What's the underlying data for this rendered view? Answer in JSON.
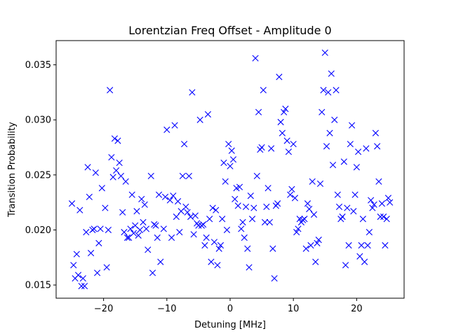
{
  "chart_data": {
    "type": "scatter",
    "title": "Lorentzian Freq Offset - Amplitude 0",
    "xlabel": "Detuning [MHz]",
    "ylabel": "Transition Probability",
    "xlim": [
      -27.5,
      27.5
    ],
    "ylim": [
      0.0138,
      0.0372
    ],
    "xticks": [
      -20,
      -10,
      0,
      10,
      20
    ],
    "yticks": [
      0.015,
      0.02,
      0.025,
      0.03,
      0.035
    ],
    "ytick_labels": [
      "0.015",
      "0.020",
      "0.025",
      "0.030",
      "0.035"
    ],
    "grid": false,
    "marker": "x",
    "color": "#0000ff",
    "points": [
      [
        -25,
        0.0224
      ],
      [
        -24.75,
        0.0168
      ],
      [
        -24.5,
        0.0156
      ],
      [
        -24.25,
        0.0178
      ],
      [
        -24,
        0.0159
      ],
      [
        -23.75,
        0.0218
      ],
      [
        -23.5,
        0.0149
      ],
      [
        -23.25,
        0.0156
      ],
      [
        -23,
        0.0149
      ],
      [
        -22.75,
        0.0198
      ],
      [
        -22.5,
        0.0257
      ],
      [
        -22.25,
        0.023
      ],
      [
        -22,
        0.0179
      ],
      [
        -21.75,
        0.02
      ],
      [
        -21.5,
        0.0201
      ],
      [
        -21.25,
        0.0252
      ],
      [
        -21,
        0.0161
      ],
      [
        -20.75,
        0.0188
      ],
      [
        -20.5,
        0.0201
      ],
      [
        -20.25,
        0.0238
      ],
      [
        -19.75,
        0.022
      ],
      [
        -19.5,
        0.0166
      ],
      [
        -19.25,
        0.02
      ],
      [
        -19,
        0.0327
      ],
      [
        -18.75,
        0.0266
      ],
      [
        -18.5,
        0.0248
      ],
      [
        -18.25,
        0.0283
      ],
      [
        -18,
        0.0254
      ],
      [
        -17.75,
        0.0281
      ],
      [
        -17.5,
        0.0261
      ],
      [
        -17.25,
        0.0249
      ],
      [
        -17,
        0.0216
      ],
      [
        -16.75,
        0.0198
      ],
      [
        -16.5,
        0.0244
      ],
      [
        -16.25,
        0.0193
      ],
      [
        -16,
        0.0193
      ],
      [
        -15.75,
        0.0201
      ],
      [
        -15.5,
        0.0232
      ],
      [
        -15.25,
        0.0197
      ],
      [
        -15,
        0.0204
      ],
      [
        -14.75,
        0.0217
      ],
      [
        -14.5,
        0.0195
      ],
      [
        -14.25,
        0.02
      ],
      [
        -14,
        0.0228
      ],
      [
        -13.75,
        0.0207
      ],
      [
        -13.5,
        0.0223
      ],
      [
        -13.25,
        0.0201
      ],
      [
        -13,
        0.0182
      ],
      [
        -12.5,
        0.0249
      ],
      [
        -12.25,
        0.0161
      ],
      [
        -12,
        0.0205
      ],
      [
        -11.75,
        0.0204
      ],
      [
        -11.5,
        0.0193
      ],
      [
        -11.25,
        0.0232
      ],
      [
        -11,
        0.0171
      ],
      [
        -10.5,
        0.0201
      ],
      [
        -10.25,
        0.023
      ],
      [
        -10,
        0.0291
      ],
      [
        -9.5,
        0.0227
      ],
      [
        -9.25,
        0.0193
      ],
      [
        -9,
        0.0231
      ],
      [
        -8.75,
        0.0295
      ],
      [
        -8.5,
        0.0212
      ],
      [
        -8.25,
        0.0226
      ],
      [
        -8,
        0.0198
      ],
      [
        -7.75,
        0.0217
      ],
      [
        -7.5,
        0.0249
      ],
      [
        -7.25,
        0.0278
      ],
      [
        -7,
        0.0221
      ],
      [
        -6.75,
        0.0216
      ],
      [
        -6.5,
        0.0249
      ],
      [
        -6.25,
        0.0212
      ],
      [
        -6,
        0.0325
      ],
      [
        -5.75,
        0.0196
      ],
      [
        -5.5,
        0.0213
      ],
      [
        -5.25,
        0.0206
      ],
      [
        -5,
        0.0204
      ],
      [
        -4.75,
        0.03
      ],
      [
        -4.5,
        0.0204
      ],
      [
        -4.25,
        0.0205
      ],
      [
        -4,
        0.0186
      ],
      [
        -3.75,
        0.0193
      ],
      [
        -3.5,
        0.0305
      ],
      [
        -3.25,
        0.021
      ],
      [
        -3,
        0.0171
      ],
      [
        -2.75,
        0.022
      ],
      [
        -2.5,
        0.0189
      ],
      [
        -2.25,
        0.0218
      ],
      [
        -2,
        0.0168
      ],
      [
        -1.75,
        0.0183
      ],
      [
        -1.5,
        0.0186
      ],
      [
        -1.25,
        0.021
      ],
      [
        -1,
        0.0261
      ],
      [
        -0.75,
        0.0244
      ],
      [
        -0.5,
        0.02
      ],
      [
        -0.25,
        0.0278
      ],
      [
        0,
        0.0258
      ],
      [
        0.25,
        0.0272
      ],
      [
        0.5,
        0.0264
      ],
      [
        0.75,
        0.0228
      ],
      [
        1,
        0.0238
      ],
      [
        1.25,
        0.0222
      ],
      [
        1.5,
        0.0239
      ],
      [
        1.75,
        0.0201
      ],
      [
        2,
        0.0207
      ],
      [
        2.25,
        0.0193
      ],
      [
        2.5,
        0.0221
      ],
      [
        2.75,
        0.0183
      ],
      [
        3,
        0.0166
      ],
      [
        3.25,
        0.0231
      ],
      [
        3.5,
        0.021
      ],
      [
        3.75,
        0.022
      ],
      [
        4,
        0.0356
      ],
      [
        4.25,
        0.0249
      ],
      [
        4.5,
        0.0307
      ],
      [
        4.75,
        0.0273
      ],
      [
        5,
        0.0275
      ],
      [
        5.25,
        0.0327
      ],
      [
        5.5,
        0.0207
      ],
      [
        5.75,
        0.0221
      ],
      [
        6,
        0.0238
      ],
      [
        6.25,
        0.0207
      ],
      [
        6.5,
        0.0274
      ],
      [
        6.75,
        0.0183
      ],
      [
        7,
        0.0156
      ],
      [
        7.25,
        0.0222
      ],
      [
        7.5,
        0.0224
      ],
      [
        7.75,
        0.0339
      ],
      [
        8,
        0.0298
      ],
      [
        8.25,
        0.0288
      ],
      [
        8.5,
        0.0307
      ],
      [
        8.75,
        0.031
      ],
      [
        9,
        0.0281
      ],
      [
        9.25,
        0.0271
      ],
      [
        9.5,
        0.0232
      ],
      [
        9.75,
        0.0237
      ],
      [
        10,
        0.0278
      ],
      [
        10.25,
        0.0229
      ],
      [
        10.5,
        0.0198
      ],
      [
        10.75,
        0.0201
      ],
      [
        11,
        0.021
      ],
      [
        11.25,
        0.0207
      ],
      [
        11.5,
        0.0209
      ],
      [
        11.75,
        0.021
      ],
      [
        12,
        0.0183
      ],
      [
        12.25,
        0.0224
      ],
      [
        12.5,
        0.0219
      ],
      [
        12.75,
        0.0186
      ],
      [
        13,
        0.0244
      ],
      [
        13.25,
        0.0214
      ],
      [
        13.5,
        0.0171
      ],
      [
        13.75,
        0.0188
      ],
      [
        14,
        0.0191
      ],
      [
        14.25,
        0.0242
      ],
      [
        14.5,
        0.0307
      ],
      [
        14.75,
        0.0327
      ],
      [
        15,
        0.0361
      ],
      [
        15.25,
        0.0276
      ],
      [
        15.5,
        0.0325
      ],
      [
        15.75,
        0.0288
      ],
      [
        16,
        0.0342
      ],
      [
        16.25,
        0.0259
      ],
      [
        16.5,
        0.03
      ],
      [
        16.75,
        0.0327
      ],
      [
        17,
        0.0232
      ],
      [
        17.25,
        0.0221
      ],
      [
        17.5,
        0.021
      ],
      [
        17.75,
        0.0212
      ],
      [
        18,
        0.0262
      ],
      [
        18.25,
        0.0168
      ],
      [
        18.5,
        0.022
      ],
      [
        18.75,
        0.0186
      ],
      [
        19,
        0.0278
      ],
      [
        19.25,
        0.0295
      ],
      [
        19.5,
        0.0217
      ],
      [
        19.75,
        0.0232
      ],
      [
        20,
        0.0257
      ],
      [
        20.25,
        0.0271
      ],
      [
        20.5,
        0.0176
      ],
      [
        20.75,
        0.0186
      ],
      [
        21,
        0.021
      ],
      [
        21.25,
        0.0171
      ],
      [
        21.5,
        0.0274
      ],
      [
        21.75,
        0.0186
      ],
      [
        22,
        0.0198
      ],
      [
        22.25,
        0.0227
      ],
      [
        22.5,
        0.022
      ],
      [
        22.75,
        0.0223
      ],
      [
        23,
        0.0288
      ],
      [
        23.25,
        0.0276
      ],
      [
        23.5,
        0.0244
      ],
      [
        23.75,
        0.0212
      ],
      [
        24,
        0.0224
      ],
      [
        24.25,
        0.0212
      ],
      [
        24.5,
        0.0186
      ],
      [
        24.75,
        0.021
      ],
      [
        25,
        0.0229
      ],
      [
        25.25,
        0.0225
      ]
    ]
  }
}
